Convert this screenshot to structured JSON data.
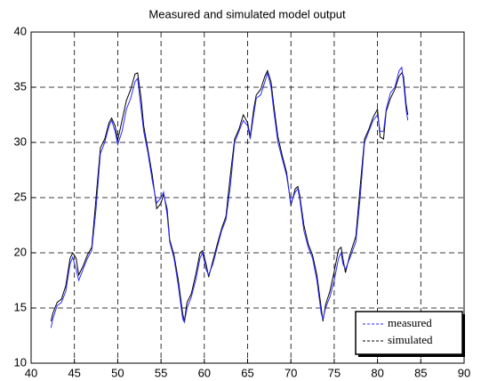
{
  "chart_data": {
    "type": "line",
    "title": "Measured and simulated model output",
    "x": [
      42.3,
      42.5,
      43,
      43.5,
      44,
      44.5,
      44.8,
      45.2,
      45.5,
      46,
      46.5,
      47,
      47.5,
      48,
      48.5,
      49,
      49.3,
      49.7,
      50,
      50.5,
      51,
      51.5,
      52,
      52.3,
      52.7,
      53,
      53.5,
      54,
      54.5,
      55,
      55.3,
      55.7,
      56,
      56.5,
      57,
      57.5,
      57.7,
      58,
      58.5,
      59,
      59.5,
      59.8,
      60.2,
      60.5,
      61,
      61.5,
      62,
      62.5,
      63,
      63.5,
      64,
      64.5,
      65,
      65.3,
      65.7,
      66,
      66.5,
      67,
      67.3,
      67.7,
      68,
      68.5,
      69,
      69.5,
      70,
      70.5,
      70.8,
      71,
      71.5,
      72,
      72.5,
      73,
      73.5,
      73.7,
      74,
      74.5,
      75,
      75.5,
      75.8,
      76,
      76.3,
      76.8,
      77.5,
      78,
      78.5,
      79,
      79.5,
      80,
      80.3,
      80.7,
      81,
      81.5,
      82,
      82.5,
      82.8,
      83,
      83.3,
      83.5
    ],
    "series": [
      {
        "name": "measured",
        "color": "#2a2aff",
        "values": [
          13.2,
          14,
          15.2,
          15.5,
          16.5,
          19,
          19.6,
          18.5,
          17.5,
          18.5,
          19.5,
          20.2,
          24,
          29,
          30,
          31.5,
          32,
          31,
          29.8,
          31,
          33,
          34,
          35.5,
          35.8,
          33,
          31,
          29,
          26.5,
          24.5,
          25,
          25.5,
          23.5,
          21,
          19.5,
          17,
          14,
          13.7,
          15,
          16,
          17.5,
          19.5,
          20,
          18.5,
          18,
          19,
          20.5,
          22,
          23,
          26,
          30,
          31,
          32,
          31.5,
          30.3,
          32.5,
          34,
          34.3,
          35.5,
          36.3,
          35,
          33,
          30,
          28.5,
          27,
          24.5,
          25.5,
          25.8,
          25,
          22,
          20.5,
          19.5,
          17.5,
          14.5,
          14,
          15,
          16,
          17.5,
          19.5,
          20,
          19,
          18.5,
          19.5,
          21,
          25,
          30,
          31,
          32,
          32.5,
          31,
          31,
          33,
          34.5,
          35,
          36.5,
          36.8,
          35.5,
          33,
          32
        ]
      },
      {
        "name": "simulated",
        "color": "#000000",
        "values": [
          13.8,
          14.5,
          15.5,
          15.8,
          17,
          19.5,
          20,
          19.5,
          18,
          18.8,
          19.8,
          20.5,
          25,
          29.5,
          30.3,
          31.8,
          32.2,
          31.5,
          30.2,
          32,
          33.8,
          34.8,
          36.2,
          36.3,
          34,
          31.5,
          29.3,
          27,
          24,
          24.5,
          25.3,
          24,
          21.2,
          19.8,
          17.5,
          14.5,
          13.8,
          15.5,
          16.3,
          18,
          20,
          20.2,
          19,
          17.8,
          19.3,
          20.8,
          22.2,
          23.3,
          27,
          30.3,
          31.2,
          32.5,
          31.8,
          30.5,
          33,
          34.3,
          34.8,
          36,
          36.5,
          35.5,
          33.5,
          30.5,
          28.8,
          27.3,
          24.3,
          25.8,
          26,
          25.3,
          22.5,
          20.8,
          19.8,
          18,
          15,
          13.8,
          15.3,
          16.5,
          18.3,
          20.3,
          20.5,
          19.5,
          18.2,
          19.8,
          21.5,
          26,
          30.3,
          31.2,
          32.3,
          33,
          30.5,
          30.3,
          32.8,
          34,
          34.8,
          36,
          36.3,
          36,
          33.5,
          32.5
        ]
      }
    ],
    "xlim": [
      40,
      90
    ],
    "xticks": [
      40,
      45,
      50,
      55,
      60,
      65,
      70,
      75,
      80,
      85,
      90
    ],
    "ylim": [
      10,
      40
    ],
    "yticks": [
      10,
      15,
      20,
      25,
      30,
      35,
      40
    ],
    "grid": true,
    "legend": "lower right"
  }
}
